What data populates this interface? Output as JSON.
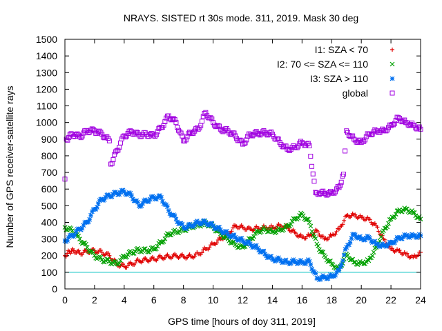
{
  "chart_data": {
    "type": "scatter",
    "title": "NRAYS. SISTED rt 30s mode. 311, 2019. Mask 30 deg",
    "xlabel": "GPS time [hours of doy 311, 2019]",
    "ylabel": "Number of GPS receiver-satellite rays",
    "xlim": [
      0,
      24
    ],
    "ylim": [
      0,
      1500
    ],
    "xticks": [
      "0",
      "2",
      "4",
      "6",
      "8",
      "10",
      "12",
      "14",
      "16",
      "18",
      "20",
      "22",
      "24"
    ],
    "yticks": [
      "0",
      "100",
      "200",
      "300",
      "400",
      "500",
      "600",
      "700",
      "800",
      "900",
      "1000",
      "1100",
      "1200",
      "1300",
      "1400",
      "1500"
    ],
    "grid": false,
    "legend_position": "top-right",
    "reference_line": {
      "y": 100,
      "color": "#00c0c0"
    },
    "series": [
      {
        "name": "I1: SZA < 70",
        "marker": "plus",
        "color": "#e00000",
        "points": [
          [
            0,
            200
          ],
          [
            0.3,
            225
          ],
          [
            0.6,
            230
          ],
          [
            1.0,
            215
          ],
          [
            1.5,
            225
          ],
          [
            2.0,
            230
          ],
          [
            2.5,
            220
          ],
          [
            3.0,
            200
          ],
          [
            3.5,
            150
          ],
          [
            4.0,
            135
          ],
          [
            4.5,
            150
          ],
          [
            5.0,
            170
          ],
          [
            5.5,
            175
          ],
          [
            6.0,
            180
          ],
          [
            6.5,
            190
          ],
          [
            7.0,
            195
          ],
          [
            7.5,
            200
          ],
          [
            8.0,
            195
          ],
          [
            8.5,
            195
          ],
          [
            9.0,
            210
          ],
          [
            9.5,
            240
          ],
          [
            10.0,
            270
          ],
          [
            10.5,
            300
          ],
          [
            11.0,
            330
          ],
          [
            11.5,
            380
          ],
          [
            12.0,
            370
          ],
          [
            12.5,
            360
          ],
          [
            13.0,
            365
          ],
          [
            13.5,
            370
          ],
          [
            14.0,
            370
          ],
          [
            14.5,
            380
          ],
          [
            15.0,
            370
          ],
          [
            15.5,
            340
          ],
          [
            16.0,
            310
          ],
          [
            16.5,
            320
          ],
          [
            17.0,
            350
          ],
          [
            17.5,
            300
          ],
          [
            18.0,
            320
          ],
          [
            18.5,
            360
          ],
          [
            19.0,
            440
          ],
          [
            19.5,
            445
          ],
          [
            20.0,
            430
          ],
          [
            20.5,
            420
          ],
          [
            21.0,
            380
          ],
          [
            21.5,
            300
          ],
          [
            22.0,
            240
          ],
          [
            22.5,
            230
          ],
          [
            23.0,
            210
          ],
          [
            23.5,
            190
          ],
          [
            24.0,
            220
          ]
        ]
      },
      {
        "name": "I2: 70 <= SZA <= 110",
        "marker": "cross",
        "color": "#00a000",
        "points": [
          [
            0,
            370
          ],
          [
            0.5,
            350
          ],
          [
            1.0,
            300
          ],
          [
            1.5,
            250
          ],
          [
            2.0,
            200
          ],
          [
            2.5,
            175
          ],
          [
            3.0,
            165
          ],
          [
            3.5,
            150
          ],
          [
            4.0,
            195
          ],
          [
            4.5,
            220
          ],
          [
            5.0,
            235
          ],
          [
            5.5,
            230
          ],
          [
            6.0,
            240
          ],
          [
            6.5,
            280
          ],
          [
            7.0,
            330
          ],
          [
            7.5,
            345
          ],
          [
            8.0,
            355
          ],
          [
            8.5,
            375
          ],
          [
            9.0,
            385
          ],
          [
            9.5,
            395
          ],
          [
            10.0,
            375
          ],
          [
            10.5,
            330
          ],
          [
            11.0,
            300
          ],
          [
            11.5,
            265
          ],
          [
            12.0,
            250
          ],
          [
            12.5,
            300
          ],
          [
            13.0,
            345
          ],
          [
            13.5,
            360
          ],
          [
            14.0,
            345
          ],
          [
            14.5,
            355
          ],
          [
            15.0,
            375
          ],
          [
            15.5,
            420
          ],
          [
            16.0,
            450
          ],
          [
            16.5,
            400
          ],
          [
            17.0,
            270
          ],
          [
            17.5,
            200
          ],
          [
            18.0,
            150
          ],
          [
            18.5,
            120
          ],
          [
            19.0,
            210
          ],
          [
            19.5,
            160
          ],
          [
            20.0,
            155
          ],
          [
            20.5,
            170
          ],
          [
            21.0,
            250
          ],
          [
            21.5,
            350
          ],
          [
            22.0,
            420
          ],
          [
            22.5,
            470
          ],
          [
            23.0,
            480
          ],
          [
            23.5,
            460
          ],
          [
            24.0,
            420
          ]
        ]
      },
      {
        "name": "I3: SZA > 110",
        "marker": "star",
        "color": "#0070f0",
        "points": [
          [
            0,
            290
          ],
          [
            0.5,
            320
          ],
          [
            1.0,
            360
          ],
          [
            1.5,
            400
          ],
          [
            2.0,
            480
          ],
          [
            2.5,
            540
          ],
          [
            3.0,
            560
          ],
          [
            3.5,
            575
          ],
          [
            4.0,
            585
          ],
          [
            4.5,
            560
          ],
          [
            5.0,
            500
          ],
          [
            5.5,
            530
          ],
          [
            6.0,
            550
          ],
          [
            6.5,
            550
          ],
          [
            7.0,
            470
          ],
          [
            7.5,
            420
          ],
          [
            8.0,
            370
          ],
          [
            8.5,
            380
          ],
          [
            9.0,
            400
          ],
          [
            9.5,
            400
          ],
          [
            10.0,
            380
          ],
          [
            10.5,
            355
          ],
          [
            11.0,
            330
          ],
          [
            11.5,
            310
          ],
          [
            12.0,
            290
          ],
          [
            12.5,
            270
          ],
          [
            13.0,
            245
          ],
          [
            13.5,
            210
          ],
          [
            14.0,
            180
          ],
          [
            14.5,
            175
          ],
          [
            15.0,
            160
          ],
          [
            15.5,
            165
          ],
          [
            16.0,
            160
          ],
          [
            16.5,
            165
          ],
          [
            17.0,
            65
          ],
          [
            17.5,
            70
          ],
          [
            18.0,
            75
          ],
          [
            18.5,
            110
          ],
          [
            19.0,
            250
          ],
          [
            19.5,
            330
          ],
          [
            20.0,
            300
          ],
          [
            20.5,
            310
          ],
          [
            21.0,
            270
          ],
          [
            21.5,
            260
          ],
          [
            22.0,
            275
          ],
          [
            22.5,
            305
          ],
          [
            23.0,
            320
          ],
          [
            23.5,
            320
          ],
          [
            24.0,
            320
          ]
        ]
      },
      {
        "name": "global",
        "marker": "square",
        "color": "#a000e0",
        "points": [
          [
            0,
            660
          ],
          [
            0.1,
            900
          ],
          [
            0.5,
            930
          ],
          [
            1.0,
            915
          ],
          [
            1.5,
            950
          ],
          [
            2.0,
            950
          ],
          [
            2.5,
            930
          ],
          [
            3.0,
            890
          ],
          [
            3.1,
            750
          ],
          [
            3.5,
            830
          ],
          [
            4.0,
            920
          ],
          [
            4.5,
            945
          ],
          [
            5.0,
            925
          ],
          [
            5.5,
            930
          ],
          [
            6.0,
            920
          ],
          [
            6.5,
            970
          ],
          [
            7.0,
            1040
          ],
          [
            7.5,
            1000
          ],
          [
            8.0,
            890
          ],
          [
            8.5,
            940
          ],
          [
            9.0,
            960
          ],
          [
            9.5,
            1060
          ],
          [
            10.0,
            1000
          ],
          [
            10.5,
            960
          ],
          [
            11.0,
            950
          ],
          [
            11.5,
            920
          ],
          [
            12.0,
            870
          ],
          [
            12.5,
            930
          ],
          [
            13.0,
            935
          ],
          [
            13.5,
            940
          ],
          [
            14.0,
            930
          ],
          [
            14.5,
            880
          ],
          [
            15.0,
            840
          ],
          [
            15.5,
            850
          ],
          [
            16.0,
            880
          ],
          [
            16.5,
            860
          ],
          [
            16.9,
            580
          ],
          [
            17.5,
            575
          ],
          [
            18.0,
            575
          ],
          [
            18.5,
            610
          ],
          [
            18.8,
            690
          ],
          [
            19.0,
            950
          ],
          [
            19.5,
            900
          ],
          [
            20.0,
            880
          ],
          [
            20.5,
            930
          ],
          [
            21.0,
            950
          ],
          [
            21.5,
            950
          ],
          [
            22.0,
            980
          ],
          [
            22.5,
            1030
          ],
          [
            23.0,
            1000
          ],
          [
            23.5,
            985
          ],
          [
            24.0,
            960
          ]
        ]
      }
    ]
  }
}
